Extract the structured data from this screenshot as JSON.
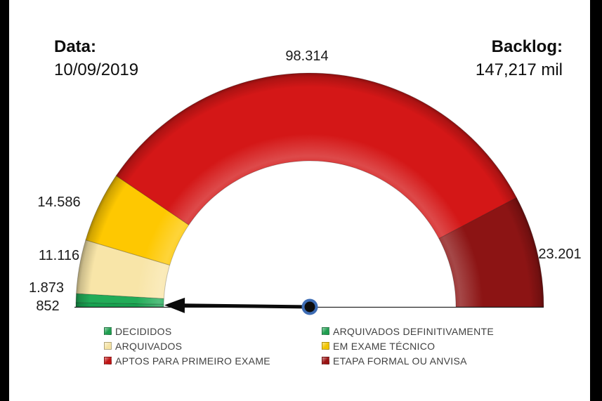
{
  "header": {
    "date_label": "Data:",
    "date_value": "10/09/2019",
    "backlog_label": "Backlog:",
    "backlog_value": "147,217 mil"
  },
  "chart_data": {
    "type": "pie",
    "subtype": "semicircle-donut-gauge",
    "start_angle_deg": 180,
    "end_angle_deg": 0,
    "direction": "clockwise",
    "segments": [
      {
        "name": "DECIDIDOS",
        "value": 852,
        "label": "852",
        "color": "#18a150"
      },
      {
        "name": "ARQUIVADOS DEFINITIVAMENTE",
        "value": 1873,
        "label": "1.873",
        "color": "#22ac58"
      },
      {
        "name": "ARQUIVADOS",
        "value": 11116,
        "label": "11.116",
        "color": "#f8e5a8"
      },
      {
        "name": "EM EXAME TÉCNICO",
        "value": 14586,
        "label": "14.586",
        "color": "#fec801"
      },
      {
        "name": "APTOS PARA PRIMEIRO EXAME",
        "value": 98314,
        "label": "98.314",
        "color": "#d41717"
      },
      {
        "name": "ETAPA FORMAL OU ANVISA",
        "value": 23201,
        "label": "23.201",
        "color": "#8c1414"
      }
    ],
    "needle": {
      "angle_deg": 179.3,
      "hub_fill": "#0d0d0d",
      "hub_ring_color": "#3e6db5",
      "color": "#0b0b0b"
    },
    "baseline_color": "#262626"
  },
  "legend": {
    "columns": [
      [
        {
          "label": "DECIDIDOS",
          "color": "#1e9e4f"
        },
        {
          "label": "ARQUIVADOS",
          "color": "#f5e3a4"
        },
        {
          "label": "APTOS PARA PRIMEIRO EXAME",
          "color": "#c01414"
        }
      ],
      [
        {
          "label": "ARQUIVADOS DEFINITIVAMENTE",
          "color": "#1e9e4f"
        },
        {
          "label": "EM EXAME TÉCNICO",
          "color": "#f2c500"
        },
        {
          "label": "ETAPA FORMAL OU ANVISA",
          "color": "#9a1212"
        }
      ]
    ]
  }
}
